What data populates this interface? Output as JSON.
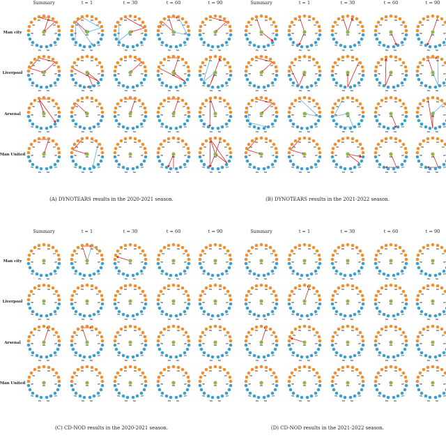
{
  "node_labels": [
    "PA",
    "SA",
    "TP",
    "TS",
    "CY",
    "CF",
    "XG"
  ],
  "colors": {
    "orange": "#f28e2b",
    "blue": "#3d9fd0",
    "green": "#8db84a",
    "red_edge": "#e01e1e",
    "blue_edge": "#5aaee0"
  },
  "panels": [
    {
      "id": "A",
      "caption": "(A) DYNOTEARS results in the 2020-2021 season.",
      "columns": [
        "Summary",
        "t = 1",
        "t = 30",
        "t = 60",
        "t = 90"
      ],
      "rows": [
        "Man city",
        "Liverpool",
        "Arsenal",
        "Man United"
      ],
      "edges": [
        [
          [
            [
              "red",
              0,
              1,
              6
            ],
            [
              "red",
              0,
              3,
              6
            ]
          ],
          [
            [
              "red",
              0,
              2,
              6
            ],
            [
              "blue",
              0,
              5,
              6
            ],
            [
              "blue",
              9,
              2,
              12
            ]
          ],
          [
            [
              "red",
              0,
              5,
              6
            ],
            [
              "blue",
              2,
              9,
              6
            ]
          ],
          [
            [
              "red",
              6,
              0,
              1
            ],
            [
              "red",
              6,
              2,
              4
            ],
            [
              "blue",
              1,
              8,
              6
            ]
          ],
          [
            [
              "red",
              0,
              3,
              6
            ]
          ]
        ],
        [
          [
            [
              "red",
              0,
              4,
              6
            ],
            [
              "red",
              0,
              3,
              6
            ]
          ],
          [
            [
              "red",
              4,
              10,
              6
            ],
            [
              "red",
              6,
              12,
              13
            ]
          ],
          [
            [
              "red",
              1,
              3,
              6
            ]
          ],
          [
            [
              "red",
              4,
              10,
              6
            ],
            [
              "red",
              0,
              1,
              6
            ]
          ],
          [
            [
              "red",
              6,
              11,
              1
            ],
            [
              "blue",
              0,
              9,
              6
            ]
          ]
        ],
        [
          [
            [
              "red",
              1,
              0,
              6
            ],
            [
              "red",
              6,
              0,
              10
            ]
          ],
          [
            [
              "red",
              4,
              2,
              6
            ]
          ],
          [
            [
              "red",
              0,
              1,
              6
            ]
          ],
          [
            [
              "red",
              0,
              1,
              6
            ]
          ],
          [
            [
              "red",
              6,
              0,
              11
            ]
          ]
        ],
        [
          [
            [
              "red",
              0,
              1,
              6
            ]
          ],
          [
            [
              "red",
              0,
              4,
              6
            ],
            [
              "blue",
              1,
              3,
              12
            ]
          ],
          [],
          [
            [
              "red",
              13,
              6,
              11
            ]
          ],
          [
            [
              "red",
              0,
              10,
              6
            ],
            [
              "red",
              1,
              6,
              11
            ],
            [
              "red",
              6,
              0,
              11
            ]
          ]
        ]
      ]
    },
    {
      "id": "B",
      "caption": "(B) DYNOTEARS results in the 2021-2022 season.",
      "columns": [
        "Summary",
        "t = 1",
        "t = 30",
        "t = 60",
        "t = 90"
      ],
      "rows": [
        "Man city",
        "Liverpool",
        "Arsenal",
        "Man United"
      ],
      "edges": [
        [
          [
            [
              "red",
              0,
              6,
              10
            ]
          ],
          [
            [
              "red",
              0,
              6,
              11
            ]
          ],
          [
            [
              "red",
              0,
              6,
              1
            ]
          ],
          [
            [
              "red",
              12,
              6,
              12
            ]
          ],
          [
            [
              "red",
              1,
              6,
              11
            ]
          ]
        ],
        [
          [
            [
              "red",
              0,
              3,
              6
            ]
          ],
          [
            [
              "red",
              4,
              11,
              6
            ]
          ],
          [
            [
              "red",
              3,
              13,
              6
            ]
          ],
          [
            [
              "red",
              6,
              11,
              0
            ]
          ],
          [
            [
              "red",
              6,
              0,
              1
            ],
            [
              "blue",
              1,
              12,
              6
            ]
          ]
        ],
        [
          [
            [
              "red",
              0,
              3,
              6
            ],
            [
              "blue",
              4,
              9,
              12
            ]
          ],
          [
            [
              "blue",
              0,
              8,
              6
            ]
          ],
          [
            [
              "blue",
              0,
              7,
              6
            ],
            [
              "blue",
              11,
              12,
              6
            ]
          ],
          [
            [
              "red",
              6,
              12,
              12
            ]
          ],
          [
            [
              "red",
              0,
              13,
              6
            ],
            [
              "blue",
              1,
              3,
              6
            ]
          ]
        ],
        [
          [
            [
              "red",
              0,
              4,
              6
            ]
          ],
          [
            [
              "red",
              0,
              4,
              6
            ]
          ],
          [
            [
              "red",
              10,
              6,
              8
            ]
          ],
          [
            [
              "red",
              6,
              12,
              11
            ]
          ],
          [
            [
              "red",
              6,
              12,
              11
            ]
          ]
        ]
      ]
    },
    {
      "id": "C",
      "caption": "(C) CD-NOD results in the 2020-2021 season.",
      "columns": [
        "Summary",
        "t = 1",
        "t = 30",
        "t = 60",
        "t = 90"
      ],
      "rows": [
        "Man city",
        "Liverpool",
        "Arsenal",
        "Man United"
      ],
      "edges": [
        [
          [],
          [
            [
              "red",
              6,
              0,
              1
            ],
            [
              "blue",
              6,
              1,
              3
            ]
          ],
          [
            [
              "red",
              4,
              6,
              4
            ]
          ],
          [],
          []
        ],
        [
          [],
          [],
          [],
          [],
          []
        ],
        [
          [
            [
              "red",
              6,
              1,
              1
            ]
          ],
          [
            [
              "red",
              6,
              0,
              1
            ]
          ],
          [],
          [],
          []
        ],
        [
          [],
          [],
          [],
          [],
          []
        ]
      ]
    },
    {
      "id": "D",
      "caption": "(D) CD-NOD results in the 2021-2022 season.",
      "columns": [
        "Summary",
        "t = 1",
        "t = 30",
        "t = 60",
        "t = 90"
      ],
      "rows": [
        "Man city",
        "Liverpool",
        "Arsenal",
        "Man United"
      ],
      "edges": [
        [
          [],
          [],
          [],
          [],
          []
        ],
        [
          [],
          [
            [
              "red",
              6,
              1,
              1
            ]
          ],
          [],
          [],
          []
        ],
        [
          [
            [
              "red",
              6,
              1,
              1
            ]
          ],
          [
            [
              "red",
              4,
              6,
              4
            ]
          ],
          [],
          [],
          []
        ],
        [
          [],
          [],
          [],
          [],
          []
        ]
      ]
    }
  ]
}
